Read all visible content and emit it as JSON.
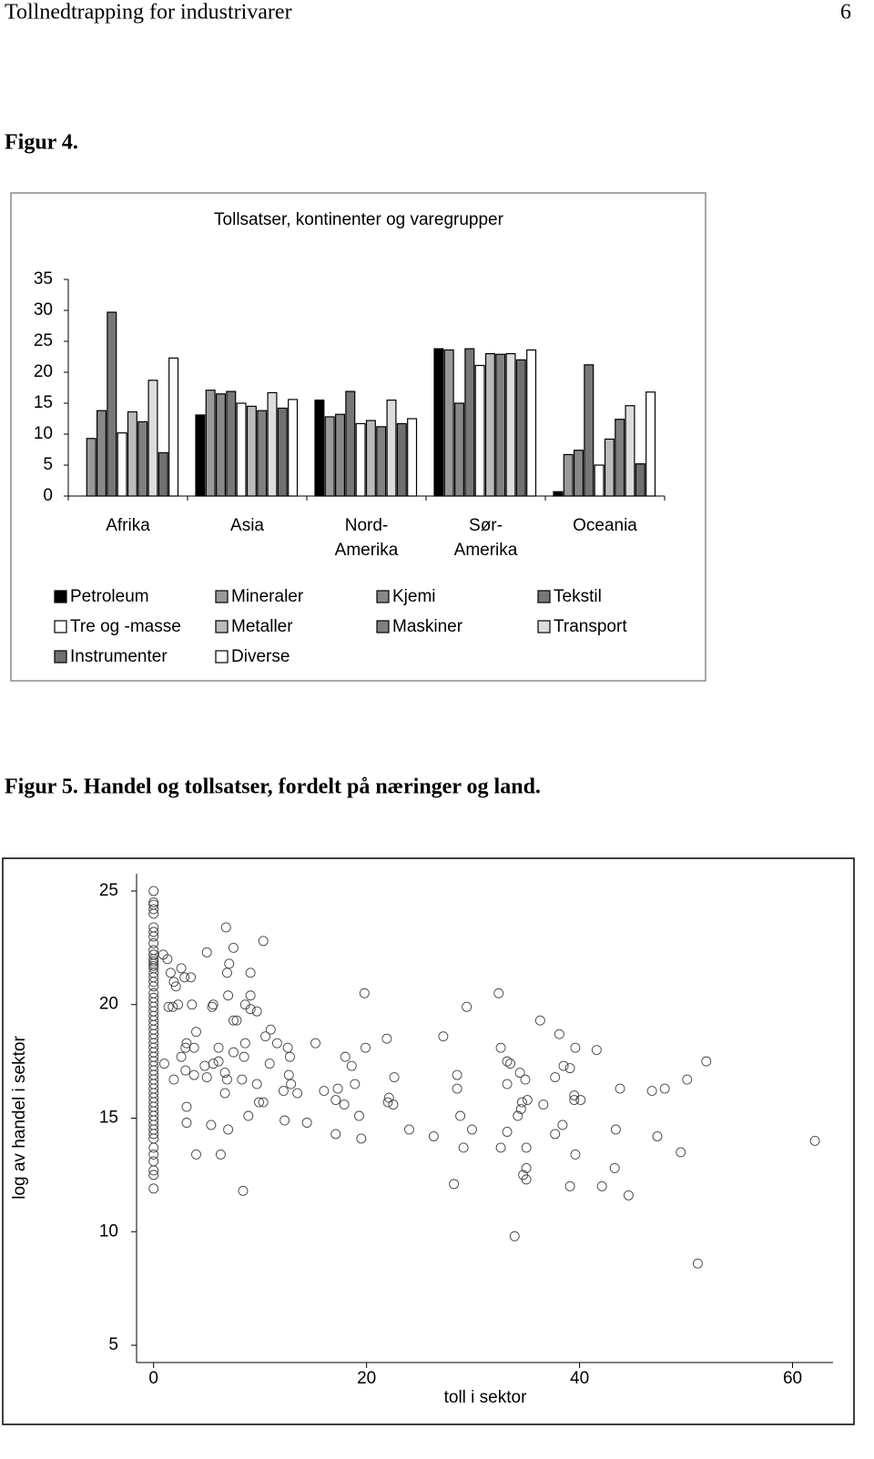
{
  "header": {
    "title": "Tollnedtrapping for industrivarer",
    "page": "6"
  },
  "figure4_caption": "Figur 4.",
  "figure5_caption": "Figur 5. Handel og tollsatser, fordelt på næringer og land.",
  "chart_data": [
    {
      "type": "bar",
      "title": "Tollsatser, kontinenter og varegrupper",
      "categories": [
        "Afrika",
        "Asia",
        "Nord-\nAmerika",
        "Sør-\nAmerika",
        "Oceania"
      ],
      "series": [
        {
          "name": "Petroleum",
          "color": "#000000",
          "values": [
            0,
            13.1,
            15.5,
            23.8,
            0.7
          ]
        },
        {
          "name": "Mineraler",
          "color": "#9a9a9a",
          "values": [
            9.3,
            17.1,
            12.8,
            23.6,
            6.7
          ]
        },
        {
          "name": "Kjemi",
          "color": "#888888",
          "values": [
            13.8,
            16.5,
            13.2,
            15.0,
            7.4
          ]
        },
        {
          "name": "Tekstil",
          "color": "#777777",
          "values": [
            29.7,
            16.9,
            16.9,
            23.8,
            21.2
          ]
        },
        {
          "name": "Tre og -masse",
          "color": "#ffffff",
          "values": [
            10.2,
            15.0,
            11.7,
            21.1,
            5.0
          ]
        },
        {
          "name": "Metaller",
          "color": "#bbbbbb",
          "values": [
            13.6,
            14.5,
            12.2,
            23.0,
            9.2
          ]
        },
        {
          "name": "Maskiner",
          "color": "#808080",
          "values": [
            12.0,
            13.8,
            11.2,
            22.9,
            12.4
          ]
        },
        {
          "name": "Transport",
          "color": "#dddddd",
          "values": [
            18.7,
            16.7,
            15.5,
            23.0,
            14.6
          ]
        },
        {
          "name": "Instrumenter",
          "color": "#707070",
          "values": [
            7.0,
            14.2,
            11.7,
            22.0,
            5.2
          ]
        },
        {
          "name": "Diverse",
          "color": "#ffffff",
          "values": [
            22.3,
            15.6,
            12.5,
            23.6,
            16.8
          ]
        }
      ],
      "ylim": [
        0,
        35
      ],
      "yticks": [
        0,
        5,
        10,
        15,
        20,
        25,
        30,
        35
      ]
    },
    {
      "type": "scatter",
      "x_label": "toll i sektor",
      "y_label": "log av handel i sektor",
      "color": "#444444",
      "x": [
        0,
        0,
        0,
        0,
        0,
        0,
        0,
        0,
        0,
        0,
        0,
        0,
        0,
        0,
        0,
        0,
        0,
        0,
        0,
        0,
        0,
        0,
        0,
        0,
        0,
        0,
        0,
        0,
        0,
        0,
        0,
        0,
        0,
        0,
        0,
        0,
        0,
        0,
        0,
        0,
        0,
        0,
        0,
        0,
        0,
        0,
        0,
        0,
        0,
        0,
        0,
        0,
        0,
        0,
        0,
        0,
        0,
        0,
        0,
        0,
        0.9,
        1.3,
        1.6,
        1.9,
        2.1,
        2.9,
        3.5,
        2.6,
        5.0,
        6.8,
        7.5,
        10.3,
        7.1,
        6.9,
        9.1,
        7.0,
        9.1,
        9.1,
        8.6,
        9.7,
        7.5,
        7.8,
        5.5,
        5.6,
        3.6,
        2.3,
        1.4,
        1.8,
        4.0,
        3.1,
        3.0,
        3.8,
        2.6,
        1.0,
        3.0,
        3.8,
        4.8,
        5.6,
        6.1,
        5.0,
        6.1,
        7.5,
        8.6,
        8.5,
        6.7,
        6.9,
        8.3,
        10.5,
        11.0,
        11.6,
        12.6,
        12.8,
        10.9,
        12.7,
        12.9,
        13.5,
        12.2,
        9.7,
        6.7,
        3.1,
        3.1,
        5.4,
        7.0,
        8.9,
        9.9,
        10.3,
        12.3,
        14.4,
        1.9,
        4.0,
        6.3,
        8.4,
        15.2,
        16.0,
        17.3,
        17.1,
        17.9,
        18.0,
        18.6,
        18.9,
        19.8,
        19.9,
        21.9,
        22.6,
        22.1,
        22.0,
        22.5,
        19.3,
        19.5,
        17.1,
        24.0,
        26.3,
        27.2,
        28.5,
        28.5,
        28.8,
        29.9,
        29.1,
        28.2,
        29.4,
        32.4,
        32.6,
        33.2,
        33.5,
        33.2,
        34.4,
        34.9,
        34.6,
        34.5,
        35.1,
        35.0,
        33.2,
        32.6,
        34.2,
        35.0,
        34.7,
        35.0,
        33.9,
        36.3,
        36.6,
        37.7,
        38.1,
        38.5,
        39.1,
        39.6,
        39.5,
        39.5,
        40.1,
        37.7,
        38.4,
        39.1,
        39.6,
        41.6,
        42.1,
        43.3,
        43.8,
        43.4,
        44.6,
        46.8,
        47.3,
        48.0,
        49.5,
        50.1,
        51.9,
        51.1,
        62.1
      ],
      "values": [
        25.0,
        24.5,
        24.4,
        24.2,
        24.0,
        23.4,
        23.2,
        23.0,
        22.7,
        22.4,
        22.2,
        22.2,
        22.0,
        21.9,
        21.8,
        21.7,
        21.6,
        21.4,
        21.2,
        21.0,
        20.8,
        20.5,
        20.3,
        20.1,
        19.9,
        19.7,
        19.5,
        19.3,
        19.1,
        18.9,
        18.7,
        18.5,
        18.3,
        18.1,
        17.9,
        17.7,
        17.5,
        17.3,
        17.1,
        16.9,
        16.7,
        16.5,
        16.3,
        16.1,
        15.9,
        15.7,
        15.5,
        15.3,
        15.1,
        14.9,
        14.7,
        14.5,
        14.3,
        14.1,
        13.7,
        13.4,
        13.1,
        12.7,
        12.5,
        11.9,
        22.2,
        22.0,
        21.4,
        21.0,
        20.8,
        21.2,
        21.2,
        21.6,
        22.3,
        23.4,
        22.5,
        22.8,
        21.8,
        21.4,
        21.4,
        20.4,
        20.4,
        19.8,
        20.0,
        19.7,
        19.3,
        19.3,
        19.9,
        20.0,
        20.0,
        20.0,
        19.9,
        19.9,
        18.8,
        18.3,
        18.1,
        18.1,
        17.7,
        17.4,
        17.1,
        16.9,
        17.3,
        17.4,
        17.5,
        16.8,
        18.1,
        17.9,
        18.3,
        17.7,
        17.0,
        16.7,
        16.7,
        18.6,
        18.9,
        18.3,
        18.1,
        17.7,
        17.4,
        16.9,
        16.5,
        16.1,
        16.2,
        16.5,
        16.1,
        15.5,
        14.8,
        14.7,
        14.5,
        15.1,
        15.7,
        15.7,
        14.9,
        14.8,
        16.7,
        13.4,
        13.4,
        11.8,
        18.3,
        16.2,
        16.3,
        15.8,
        15.6,
        17.7,
        17.3,
        16.5,
        20.5,
        18.1,
        18.5,
        16.8,
        15.9,
        15.7,
        15.6,
        15.1,
        14.1,
        14.3,
        14.5,
        14.2,
        18.6,
        16.9,
        16.3,
        15.1,
        14.5,
        13.7,
        12.1,
        19.9,
        20.5,
        18.1,
        17.5,
        17.4,
        16.5,
        17.0,
        16.7,
        15.7,
        15.4,
        15.8,
        13.7,
        14.4,
        13.7,
        15.1,
        12.8,
        12.5,
        12.3,
        9.8,
        19.3,
        15.6,
        16.8,
        18.7,
        17.3,
        17.2,
        18.1,
        16.0,
        15.8,
        15.8,
        14.3,
        14.7,
        12.0,
        13.4,
        18.0,
        12.0,
        12.8,
        16.3,
        14.5,
        11.6,
        16.2,
        14.2,
        16.3,
        13.5,
        16.7,
        17.5,
        8.6,
        14.0
      ],
      "xlim": [
        -1.6,
        63.8
      ],
      "ylim": [
        4.24,
        25.76
      ],
      "xticks": [
        0,
        20,
        40,
        60
      ],
      "yticks": [
        5,
        10,
        15,
        20,
        25
      ]
    }
  ]
}
